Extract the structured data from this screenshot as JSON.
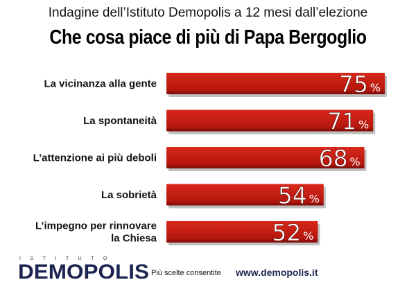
{
  "chart_data": {
    "type": "bar",
    "orientation": "horizontal",
    "subtitle": "Indagine dell’Istituto Demopolis a 12 mesi dall’elezione",
    "title": "Che cosa piace di più di Papa Bergoglio",
    "categories": [
      [
        "La vicinanza alla gente"
      ],
      [
        "La spontaneità"
      ],
      [
        "L’attenzione ai più deboli"
      ],
      [
        "La sobrietà"
      ],
      [
        "L’impegno per rinnovare",
        "la Chiesa"
      ]
    ],
    "values": [
      75,
      71,
      68,
      54,
      52
    ],
    "unit": "%",
    "xlim": [
      0,
      100
    ],
    "bar_color": "#c01a10"
  },
  "footer": {
    "logo_top": "ISTITUTO",
    "logo": "DEMOPOLIS",
    "note": "Più scelte consentite",
    "url": "www.demopolis.it"
  }
}
